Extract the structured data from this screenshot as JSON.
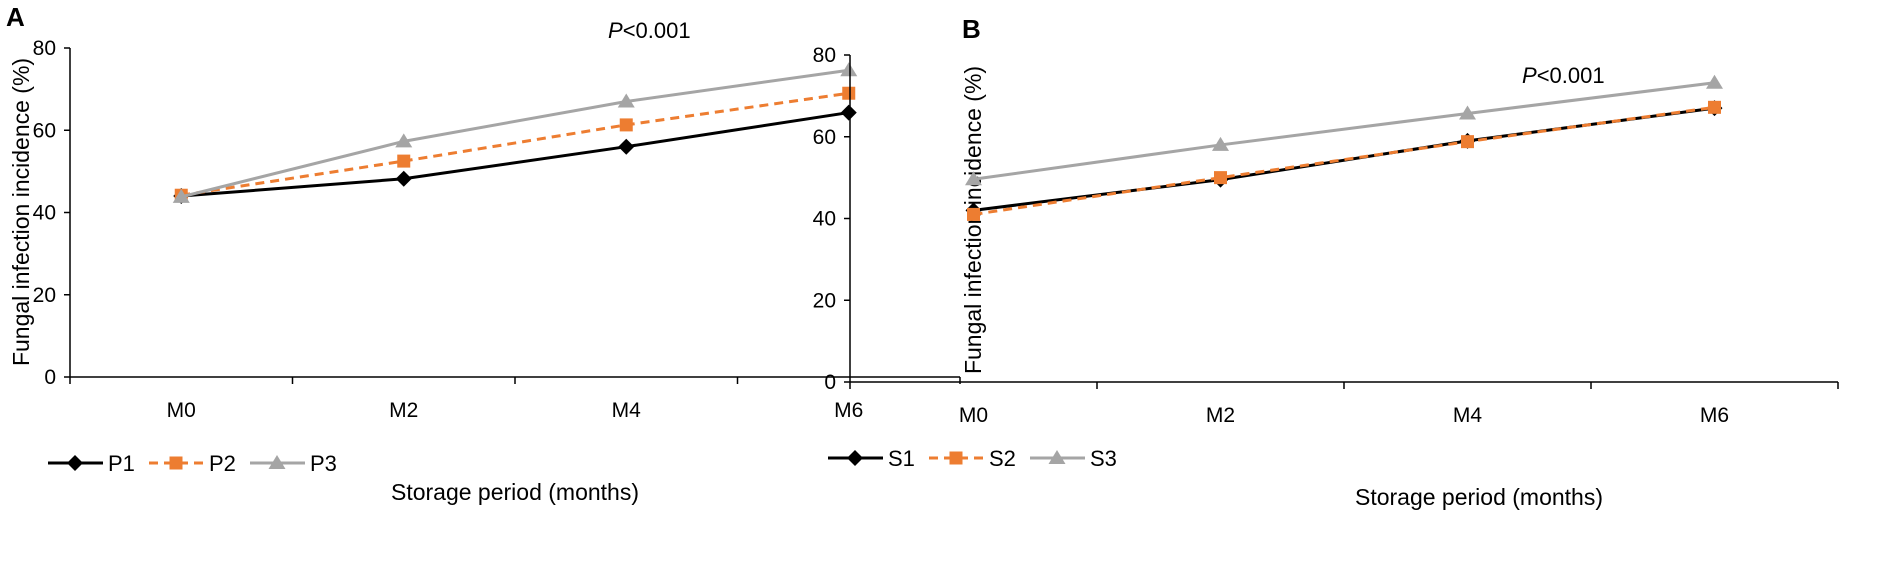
{
  "chart_data": [
    {
      "type": "line",
      "panel_label": "A",
      "annotation_italic": "P",
      "annotation_rest": "<0.001",
      "categories": [
        "M0",
        "M2",
        "M4",
        "M6"
      ],
      "xlabel": "Storage period (months)",
      "ylabel": "Fungal infection incidence (%)",
      "ylim": [
        0,
        80
      ],
      "yticks": [
        "0",
        "20",
        "40",
        "60",
        "80"
      ],
      "grid": false,
      "legend_position": "bottom-left",
      "series": [
        {
          "name": "P1",
          "values": [
            44,
            48.2,
            56,
            64.3
          ],
          "color": "#000000",
          "marker": "diamond",
          "dashed": false
        },
        {
          "name": "P2",
          "values": [
            44.2,
            52.5,
            61.3,
            69
          ],
          "color": "#ED7D31",
          "marker": "square",
          "dashed": true
        },
        {
          "name": "P3",
          "values": [
            43.8,
            57.3,
            67,
            74.6
          ],
          "color": "#A5A5A5",
          "marker": "triangle",
          "dashed": false
        }
      ]
    },
    {
      "type": "line",
      "panel_label": "B",
      "annotation_italic": "P",
      "annotation_rest": "<0.001",
      "categories": [
        "M0",
        "M2",
        "M4",
        "M6"
      ],
      "xlabel": "Storage period (months)",
      "ylabel": "Fungal infection incidence (%)",
      "ylim": [
        0,
        80
      ],
      "yticks": [
        "0",
        "20",
        "40",
        "60",
        "80"
      ],
      "grid": false,
      "legend_position": "bottom-left",
      "series": [
        {
          "name": "S1",
          "values": [
            42,
            49.5,
            59,
            67
          ],
          "color": "#000000",
          "marker": "diamond",
          "dashed": false
        },
        {
          "name": "S2",
          "values": [
            41,
            50,
            58.8,
            67.2
          ],
          "color": "#ED7D31",
          "marker": "square",
          "dashed": true
        },
        {
          "name": "S3",
          "values": [
            49.6,
            58,
            65.7,
            73.2
          ],
          "color": "#A5A5A5",
          "marker": "triangle",
          "dashed": false
        }
      ]
    }
  ]
}
